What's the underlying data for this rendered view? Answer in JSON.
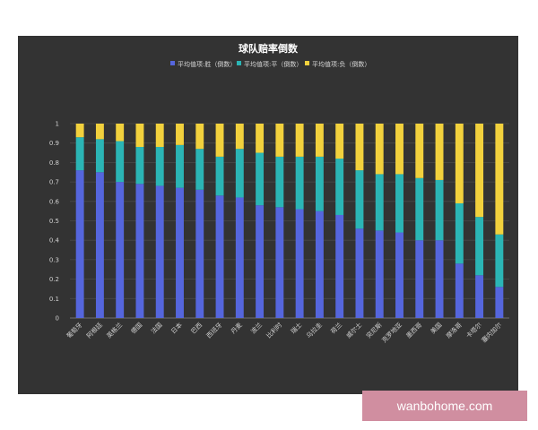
{
  "colors": {
    "panel_bg": "#333333",
    "win": "#5566dd",
    "draw": "#2bb5b5",
    "loss": "#f2d13d"
  },
  "watermark": {
    "text": "wanbohome.com"
  },
  "chart_data": {
    "type": "bar",
    "stacked": true,
    "title": "球队赔率倒数",
    "ylim": [
      0,
      1
    ],
    "yticks": [
      0,
      0.1,
      0.2,
      0.3,
      0.4,
      0.5,
      0.6,
      0.7,
      0.8,
      0.9,
      1
    ],
    "grid": true,
    "legend_position": "top-center",
    "categories": [
      "葡萄牙",
      "阿根廷",
      "英格兰",
      "德国",
      "法国",
      "日本",
      "巴西",
      "西班牙",
      "丹麦",
      "波兰",
      "比利时",
      "瑞士",
      "乌拉圭",
      "荷兰",
      "威尔士",
      "突尼斯",
      "克罗地亚",
      "墨西哥",
      "美国",
      "摩洛哥",
      "卡塔尔",
      "塞内加尔"
    ],
    "series": [
      {
        "name": "平均值项:胜（倒数）",
        "color": "#5566dd",
        "values": [
          0.76,
          0.75,
          0.7,
          0.69,
          0.68,
          0.67,
          0.66,
          0.63,
          0.62,
          0.58,
          0.57,
          0.56,
          0.55,
          0.53,
          0.46,
          0.45,
          0.44,
          0.4,
          0.4,
          0.28,
          0.22,
          0.16
        ]
      },
      {
        "name": "平均值项:平（倒数）",
        "color": "#2bb5b5",
        "values": [
          0.17,
          0.17,
          0.21,
          0.19,
          0.2,
          0.22,
          0.21,
          0.2,
          0.25,
          0.27,
          0.26,
          0.27,
          0.28,
          0.29,
          0.3,
          0.29,
          0.3,
          0.32,
          0.31,
          0.31,
          0.3,
          0.27
        ]
      },
      {
        "name": "平均值项:负（倒数）",
        "color": "#f2d13d",
        "values": [
          0.07,
          0.08,
          0.09,
          0.12,
          0.12,
          0.11,
          0.13,
          0.17,
          0.13,
          0.15,
          0.17,
          0.17,
          0.17,
          0.18,
          0.24,
          0.26,
          0.26,
          0.28,
          0.29,
          0.41,
          0.48,
          0.57
        ]
      }
    ]
  }
}
